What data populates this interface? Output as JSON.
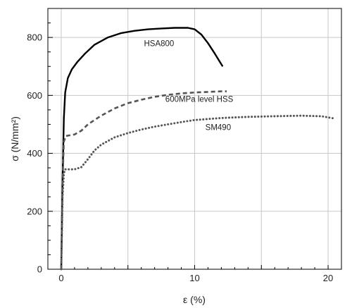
{
  "chart_data": {
    "type": "line",
    "title": "",
    "xlabel": "ε (%)",
    "ylabel": "σ (N/mm²)",
    "xlim": [
      -1,
      21
    ],
    "ylim": [
      0,
      900
    ],
    "x_ticks": [
      0,
      10,
      20
    ],
    "x_tick_labels": [
      "0",
      "10",
      "20"
    ],
    "y_ticks": [
      0,
      200,
      400,
      600,
      800
    ],
    "y_tick_labels": [
      "0",
      "200",
      "400",
      "600",
      "800"
    ],
    "grid": true,
    "series": [
      {
        "name": "HSA800",
        "style": "solid",
        "color": "#000000",
        "x": [
          0,
          0.1,
          0.2,
          0.3,
          0.5,
          0.8,
          1.2,
          1.8,
          2.5,
          3.5,
          4.5,
          5.5,
          6.5,
          7.5,
          8.5,
          9.5,
          10.0,
          10.5,
          11.0,
          11.5,
          12.1
        ],
        "y": [
          0,
          300,
          520,
          610,
          660,
          690,
          715,
          745,
          775,
          800,
          815,
          823,
          828,
          831,
          833,
          833,
          828,
          810,
          780,
          745,
          700
        ]
      },
      {
        "name": "600MPa level HSS",
        "style": "dashed",
        "color": "#555555",
        "x": [
          0,
          0.1,
          0.2,
          0.35,
          0.6,
          1.0,
          1.5,
          2.0,
          3.0,
          4.0,
          5.0,
          6.0,
          7.0,
          8.0,
          9.0,
          10.0,
          11.0,
          12.0,
          12.4
        ],
        "y": [
          0,
          300,
          440,
          460,
          462,
          465,
          478,
          500,
          530,
          555,
          573,
          585,
          595,
          602,
          607,
          610,
          612,
          614,
          614
        ]
      },
      {
        "name": "SM490",
        "style": "dotted",
        "color": "#555555",
        "x": [
          0,
          0.1,
          0.2,
          0.3,
          0.6,
          1.0,
          1.5,
          2.0,
          2.5,
          3.0,
          4.0,
          5.0,
          6.0,
          7.0,
          8.0,
          9.0,
          10.0,
          12.0,
          14.0,
          16.0,
          18.0,
          19.5,
          20.5
        ],
        "y": [
          0,
          250,
          330,
          345,
          345,
          345,
          352,
          380,
          410,
          430,
          455,
          470,
          482,
          492,
          500,
          508,
          515,
          522,
          526,
          528,
          530,
          528,
          520
        ]
      }
    ],
    "annotations": [
      {
        "text": "HSA800",
        "x": 6.2,
        "y": 770
      },
      {
        "text": "600MPa level HSS",
        "x": 7.8,
        "y": 578
      },
      {
        "text": "SM490",
        "x": 10.8,
        "y": 480
      }
    ]
  }
}
